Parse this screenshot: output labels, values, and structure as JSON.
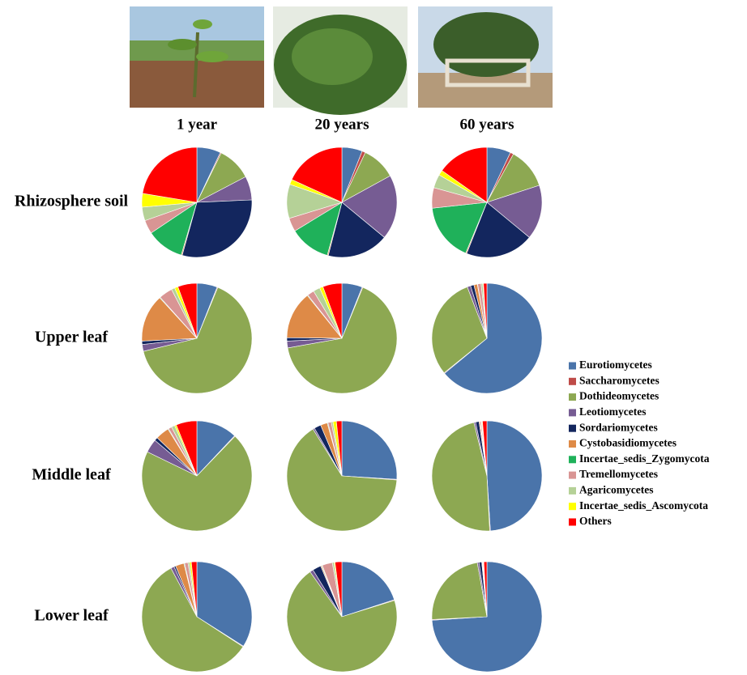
{
  "columns": [
    "1 year",
    "20 years",
    "60 years"
  ],
  "rows": [
    "Rhizosphere soil",
    "Upper leaf",
    "Middle leaf",
    "Lower leaf"
  ],
  "legend": {
    "categories": [
      "Eurotiomycetes",
      "Saccharomycetes",
      "Dothideomycetes",
      "Leotiomycetes",
      "Sordariomycetes",
      "Cystobasidiomycetes",
      "Incertae_sedis_Zygomycota",
      "Tremellomycetes",
      "Agaricomycetes",
      "Incertae_sedis_Ascomycota",
      "Others"
    ],
    "colors": [
      "#4a74aa",
      "#bf4b48",
      "#8da852",
      "#765c93",
      "#13265e",
      "#de8a47",
      "#1fb15a",
      "#d99594",
      "#b5d197",
      "#ffff00",
      "#ff0000"
    ]
  },
  "chart_data": [
    {
      "type": "pie",
      "values": [
        7,
        0.3,
        10,
        7,
        30,
        0.3,
        11,
        4,
        4,
        4,
        22.4
      ]
    },
    {
      "type": "pie",
      "values": [
        6,
        1,
        10,
        19,
        18,
        0.3,
        12,
        4,
        10,
        1.5,
        18.2
      ]
    },
    {
      "type": "pie",
      "values": [
        7,
        1,
        12,
        16,
        20,
        0.3,
        17,
        6,
        4,
        1.5,
        15.2
      ]
    },
    {
      "type": "pie",
      "values": [
        6,
        0.2,
        65,
        2,
        1,
        14,
        0.2,
        4,
        1,
        1,
        5.6
      ]
    },
    {
      "type": "pie",
      "values": [
        6,
        0.2,
        66,
        2,
        1,
        14,
        0.2,
        2,
        2,
        1,
        5.6
      ]
    },
    {
      "type": "pie",
      "values": [
        64,
        0.2,
        30,
        1,
        1,
        1,
        0.1,
        1,
        0.5,
        0.2,
        1
      ]
    },
    {
      "type": "pie",
      "values": [
        12,
        0.2,
        70,
        4,
        1,
        4,
        0.2,
        1,
        1,
        0.5,
        6.1
      ]
    },
    {
      "type": "pie",
      "values": [
        26,
        0.2,
        65,
        0.5,
        2,
        2,
        0.2,
        1,
        0.5,
        1,
        1.6
      ]
    },
    {
      "type": "pie",
      "values": [
        49,
        0.2,
        47,
        0.5,
        1,
        0.3,
        0.1,
        0.3,
        0.1,
        0.2,
        1.3
      ]
    },
    {
      "type": "pie",
      "values": [
        34,
        0.2,
        58,
        1,
        0.5,
        2.5,
        0.2,
        1,
        0.5,
        0.5,
        1.6
      ]
    },
    {
      "type": "pie",
      "values": [
        20,
        0.2,
        70,
        1,
        2.5,
        0.3,
        0.2,
        3,
        0.5,
        0.3,
        2
      ]
    },
    {
      "type": "pie",
      "values": [
        74,
        0.2,
        23,
        0.5,
        0.8,
        0.1,
        0.1,
        0.2,
        0.1,
        0.1,
        0.9
      ]
    }
  ]
}
